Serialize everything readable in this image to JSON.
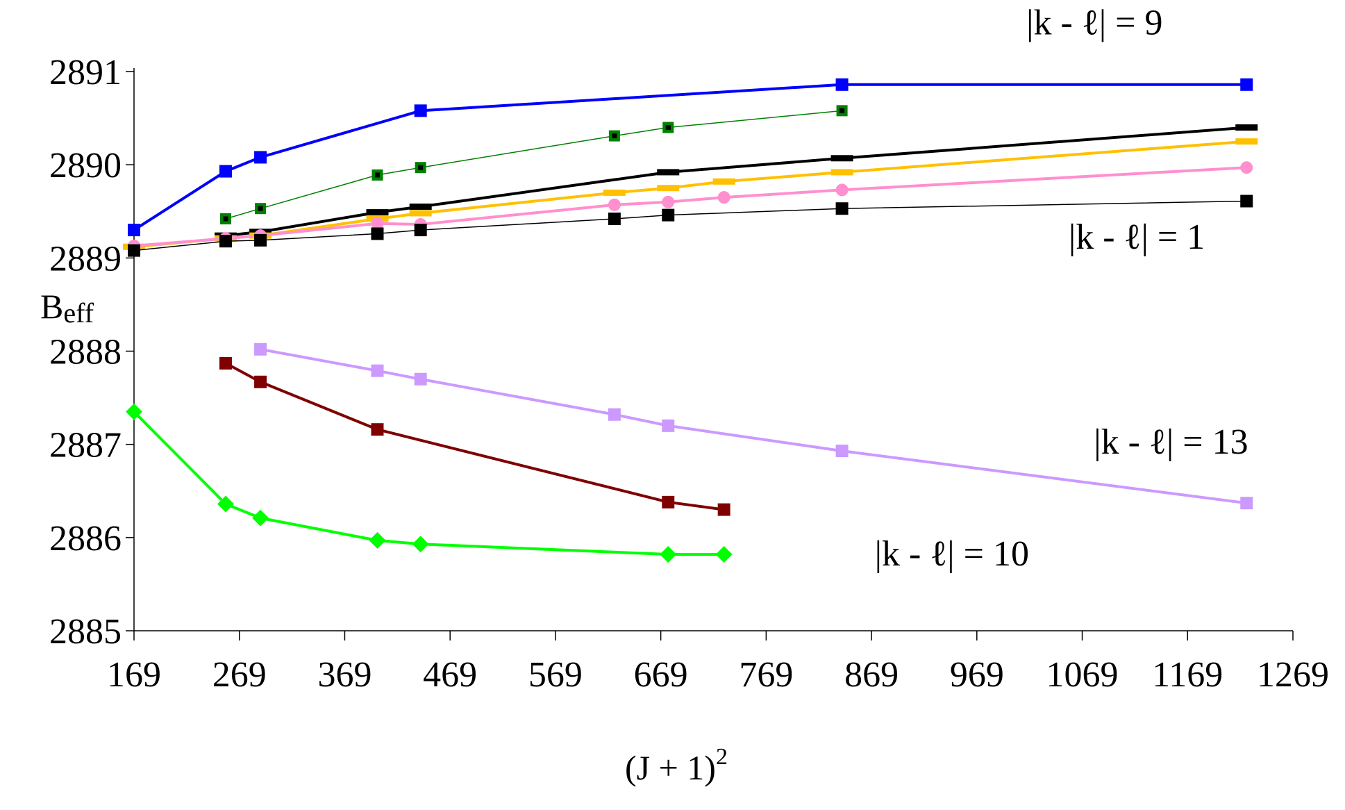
{
  "chart_data": {
    "type": "line",
    "title": "",
    "xlabel": "(J + 1)",
    "xlabel_sup": "2",
    "ylabel_main": "B",
    "ylabel_sub": "eff",
    "xlim": [
      169,
      1269
    ],
    "ylim": [
      2885,
      2891
    ],
    "xticks": [
      169,
      269,
      369,
      469,
      569,
      669,
      769,
      869,
      969,
      1069,
      1169,
      1269
    ],
    "xtick_labels": [
      "169",
      "269",
      "369",
      "469",
      "569",
      "669",
      "769",
      "869",
      "969",
      "1069",
      "1169",
      "1269"
    ],
    "yticks": [
      2885,
      2886,
      2887,
      2888,
      2889,
      2890,
      2891
    ],
    "ytick_labels": [
      "2885",
      "2886",
      "2887",
      "2888",
      "2889",
      "2890",
      "2891"
    ],
    "annotations": [
      {
        "text": "|k - ℓ| = 9",
        "at": [
          1016,
          2891.4
        ]
      },
      {
        "text": "|k - ℓ| = 1",
        "at": [
          1056,
          2889.1
        ]
      },
      {
        "text": "|k - ℓ| = 13",
        "at": [
          1080,
          2886.9
        ]
      },
      {
        "text": "|k - ℓ| = 10",
        "at": [
          872,
          2885.7
        ]
      }
    ],
    "series": [
      {
        "name": "|k - ℓ| = 9",
        "color": "#0000ff",
        "width": 4,
        "marker": "square",
        "x": [
          169,
          256,
          289,
          441,
          841,
          1225
        ],
        "y": [
          2889.3,
          2889.93,
          2890.08,
          2890.58,
          2890.86,
          2890.86
        ]
      },
      {
        "name": "green-square-series",
        "color": "#008000",
        "width": 1.5,
        "marker": "square-dot",
        "x": [
          256,
          289,
          400,
          441,
          625,
          676,
          841
        ],
        "y": [
          2889.42,
          2889.53,
          2889.89,
          2889.97,
          2890.31,
          2890.4,
          2890.58
        ]
      },
      {
        "name": "black-dash-series",
        "color": "#000000",
        "width": 4,
        "marker": "dash",
        "x": [
          256,
          289,
          400,
          441,
          676,
          841,
          1225
        ],
        "y": [
          2889.24,
          2889.28,
          2889.49,
          2889.55,
          2889.92,
          2890.07,
          2890.4
        ]
      },
      {
        "name": "gold-dash-series",
        "color": "#ffc000",
        "width": 4,
        "marker": "dash",
        "x": [
          169,
          256,
          289,
          400,
          441,
          625,
          676,
          729,
          841,
          1225
        ],
        "y": [
          2889.12,
          2889.21,
          2889.24,
          2889.42,
          2889.48,
          2889.7,
          2889.75,
          2889.82,
          2889.92,
          2890.25
        ]
      },
      {
        "name": "pink-circle-series",
        "color": "#ff8fcf",
        "width": 4,
        "marker": "circle",
        "x": [
          169,
          256,
          289,
          400,
          441,
          625,
          676,
          729,
          841,
          1225
        ],
        "y": [
          2889.13,
          2889.21,
          2889.24,
          2889.37,
          2889.36,
          2889.57,
          2889.6,
          2889.65,
          2889.73,
          2889.97
        ]
      },
      {
        "name": "|k - ℓ| = 1",
        "color": "#000000",
        "width": 1.5,
        "marker": "square",
        "x": [
          169,
          256,
          289,
          400,
          441,
          625,
          676,
          841,
          1225
        ],
        "y": [
          2889.08,
          2889.18,
          2889.19,
          2889.26,
          2889.3,
          2889.42,
          2889.46,
          2889.53,
          2889.61
        ]
      },
      {
        "name": "|k - ℓ| = 13",
        "color": "#cc99ff",
        "width": 4,
        "marker": "square",
        "x": [
          289,
          400,
          441,
          625,
          676,
          841,
          1225
        ],
        "y": [
          2888.02,
          2887.79,
          2887.7,
          2887.32,
          2887.2,
          2886.93,
          2886.37
        ]
      },
      {
        "name": "dark-red-series",
        "color": "#800000",
        "width": 4,
        "marker": "square",
        "x": [
          256,
          289,
          400,
          676,
          729
        ],
        "y": [
          2887.87,
          2887.67,
          2887.16,
          2886.38,
          2886.3
        ]
      },
      {
        "name": "|k - ℓ| = 10",
        "color": "#00ff00",
        "width": 4,
        "marker": "diamond",
        "x": [
          169,
          256,
          289,
          400,
          441,
          676,
          729
        ],
        "y": [
          2887.35,
          2886.36,
          2886.21,
          2885.97,
          2885.93,
          2885.82,
          2885.82
        ]
      }
    ]
  }
}
